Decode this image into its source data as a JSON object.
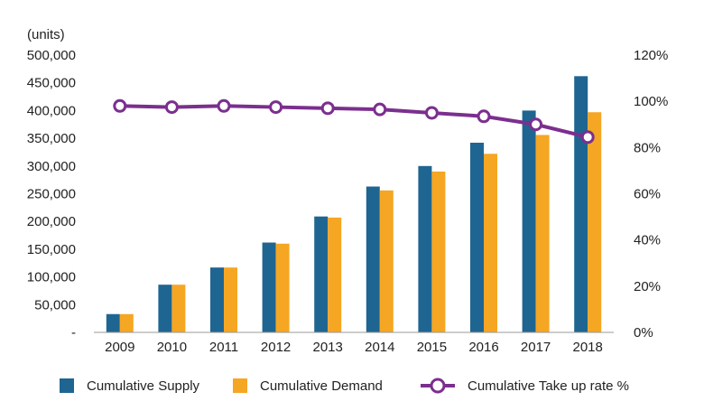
{
  "chart_data": {
    "type": "bar",
    "title": "",
    "xlabel": "",
    "ylabel": "(units)",
    "ylim": [
      0,
      500000
    ],
    "y2lim": [
      0,
      1.2
    ],
    "categories": [
      "2009",
      "2010",
      "2011",
      "2012",
      "2013",
      "2014",
      "2015",
      "2016",
      "2017",
      "2018"
    ],
    "y_ticks": [
      "-",
      "50,000",
      "100,000",
      "150,000",
      "200,000",
      "250,000",
      "300,000",
      "350,000",
      "400,000",
      "450,000",
      "500,000"
    ],
    "y2_ticks": [
      "0%",
      "20%",
      "40%",
      "60%",
      "80%",
      "100%",
      "120%"
    ],
    "series": [
      {
        "name": "Cumulative Supply",
        "type": "bar",
        "axis": "left",
        "color": "#1f6591",
        "values": [
          33000,
          86000,
          117000,
          162000,
          209000,
          263000,
          300000,
          342000,
          400000,
          462000
        ]
      },
      {
        "name": "Cumulative Demand",
        "type": "bar",
        "axis": "left",
        "color": "#f5a623",
        "values": [
          33000,
          86000,
          117000,
          160000,
          207000,
          256000,
          290000,
          322000,
          356000,
          397000
        ]
      },
      {
        "name": "Cumulative Take up rate %",
        "type": "line",
        "axis": "right",
        "color": "#7b2f8e",
        "values": [
          0.98,
          0.975,
          0.98,
          0.975,
          0.97,
          0.965,
          0.95,
          0.935,
          0.9,
          0.845
        ]
      }
    ],
    "legend": "bottom"
  }
}
